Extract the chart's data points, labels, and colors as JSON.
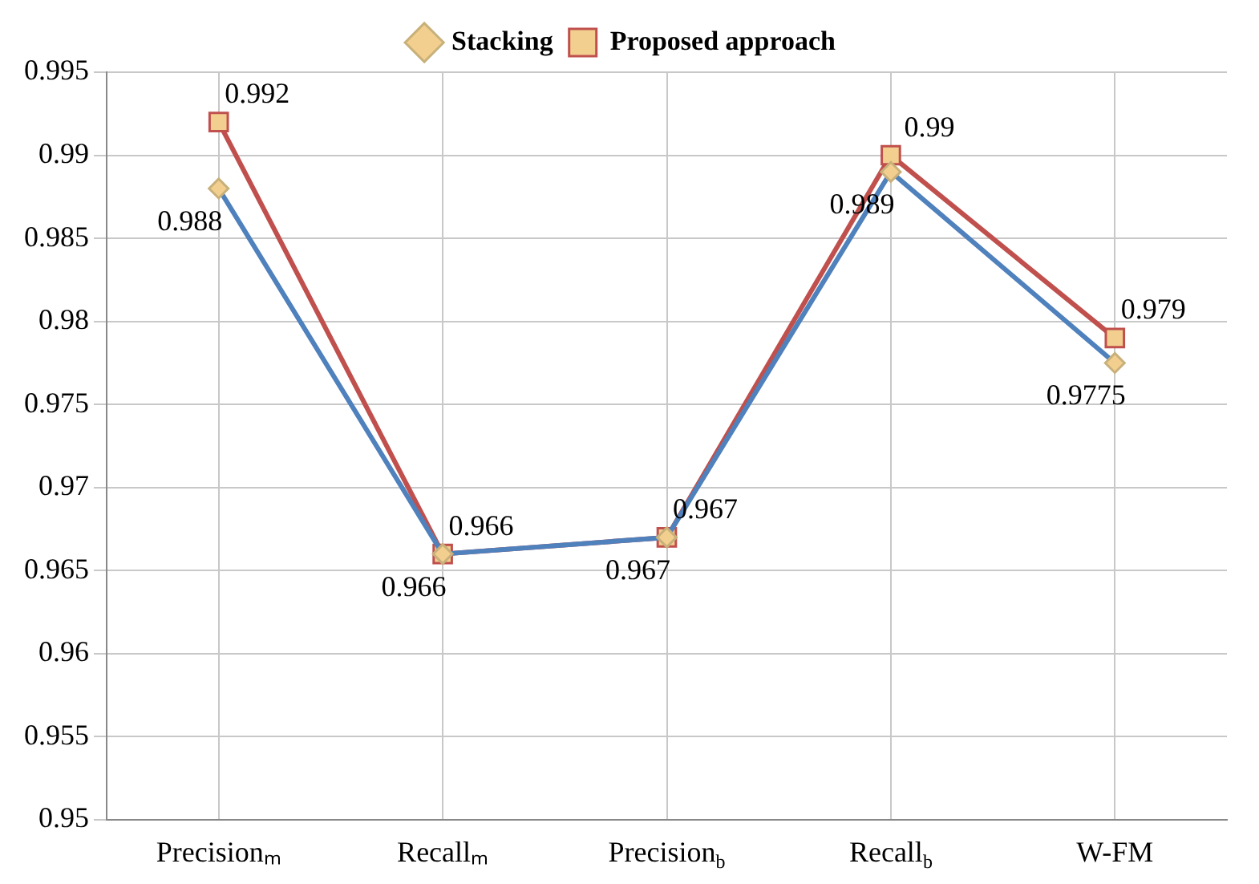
{
  "chart_data": {
    "type": "line",
    "categories": [
      "Precisionₘ",
      "Recallₘ",
      "Precision$_{b}$",
      "Recall$_{b}$",
      "W-FM"
    ],
    "series": [
      {
        "name": "Stacking",
        "color": "#4f81bd",
        "marker": "diamond",
        "values": [
          0.988,
          0.966,
          0.967,
          0.989,
          0.9775
        ]
      },
      {
        "name": "Proposed approach",
        "color": "#c0504d",
        "marker": "square",
        "values": [
          0.992,
          0.966,
          0.967,
          0.99,
          0.979
        ]
      }
    ],
    "ylim": [
      0.95,
      0.995
    ],
    "yticks": [
      0.95,
      0.955,
      0.96,
      0.965,
      0.97,
      0.975,
      0.98,
      0.985,
      0.99,
      0.995
    ],
    "grid": true,
    "legend": "top",
    "data_labels": true
  }
}
